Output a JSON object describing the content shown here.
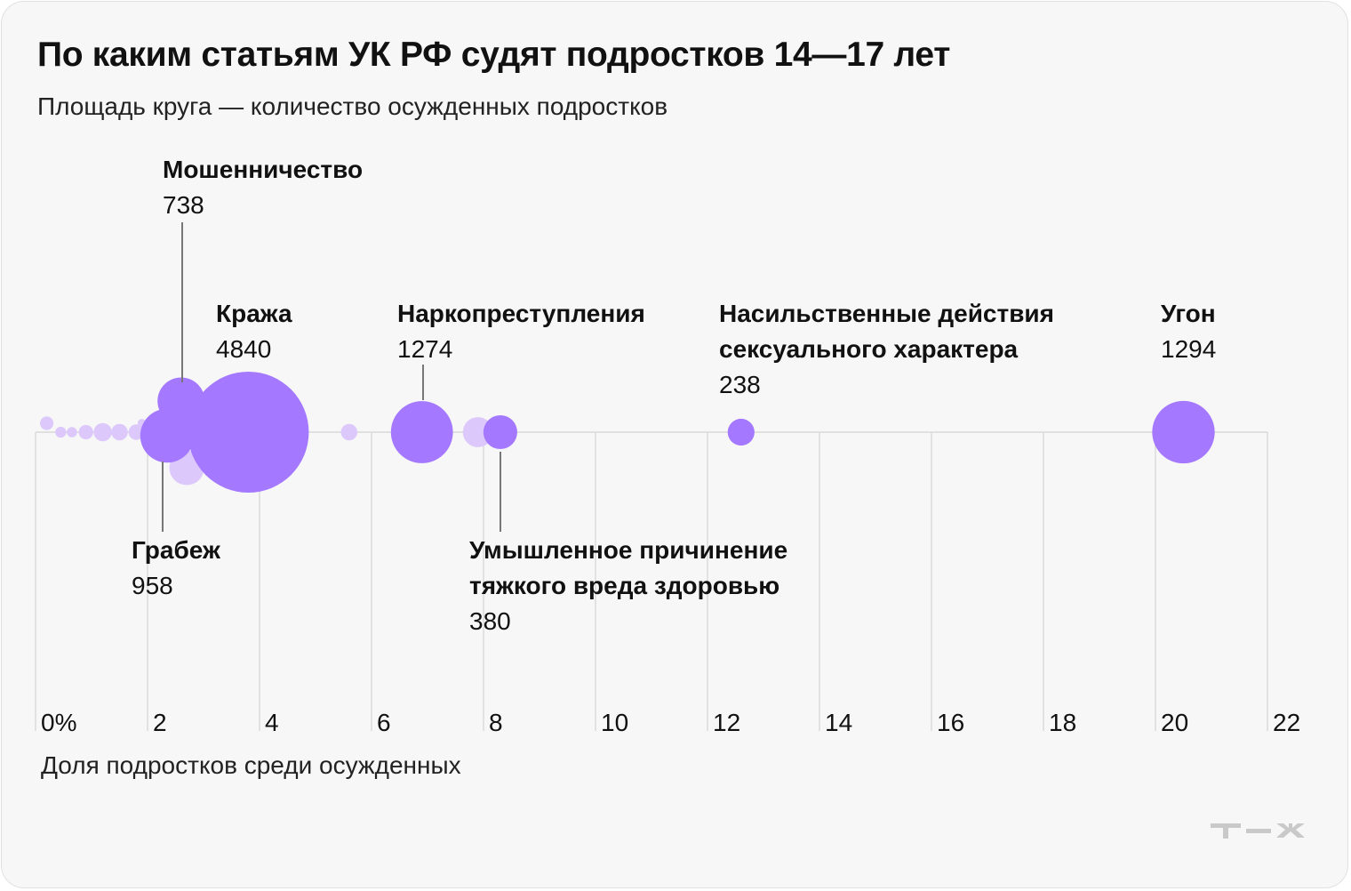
{
  "chart_data": {
    "type": "scatter",
    "title": "По каким статьям УК РФ судят подростков 14—17 лет",
    "subtitle": "Площадь круга — количество осужденных подростков",
    "xlabel": "Доля подростков среди осужденных",
    "x_unit_suffix": "%",
    "xlim": [
      0,
      22
    ],
    "xticks": [
      0,
      2,
      4,
      6,
      8,
      10,
      12,
      14,
      16,
      18,
      20,
      22
    ],
    "grid": true,
    "highlight_color": "#a478ff",
    "other_color": "#dcc8fa",
    "series": [
      {
        "name": "Кража",
        "x": 3.8,
        "count": 4840,
        "labeled": true
      },
      {
        "name": "Грабеж",
        "x": 2.35,
        "count": 958,
        "labeled": true
      },
      {
        "name": "Мошенничество",
        "x": 2.6,
        "count": 738,
        "labeled": true
      },
      {
        "name": "Наркопреступления",
        "x": 6.9,
        "count": 1274,
        "labeled": true
      },
      {
        "name": "Умышленное причинение тяжкого вреда здоровью",
        "x": 8.3,
        "count": 380,
        "labeled": true
      },
      {
        "name": "Насильственные действия сексуального характера",
        "x": 12.6,
        "count": 238,
        "labeled": true
      },
      {
        "name": "Угон",
        "x": 20.5,
        "count": 1294,
        "labeled": true
      },
      {
        "x": 7.9,
        "count": 300,
        "labeled": false
      },
      {
        "x": 2.7,
        "count": 400,
        "labeled": false
      },
      {
        "x": 5.6,
        "count": 90,
        "labeled": false
      },
      {
        "x": 0.2,
        "count": 60,
        "labeled": false
      },
      {
        "x": 0.45,
        "count": 40,
        "labeled": false
      },
      {
        "x": 0.65,
        "count": 35,
        "labeled": false
      },
      {
        "x": 0.9,
        "count": 70,
        "labeled": false
      },
      {
        "x": 1.2,
        "count": 110,
        "labeled": false
      },
      {
        "x": 1.5,
        "count": 90,
        "labeled": false
      },
      {
        "x": 1.8,
        "count": 80,
        "labeled": false
      },
      {
        "x": 1.9,
        "count": 25,
        "labeled": false
      },
      {
        "x": 2.7,
        "count": 20,
        "labeled": false
      }
    ]
  },
  "logo_text": "Т—Ж"
}
